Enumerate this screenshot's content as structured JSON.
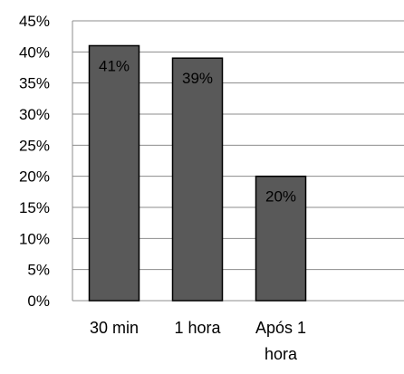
{
  "chart_data": {
    "type": "bar",
    "categories": [
      "30 min",
      "1 hora",
      "Após 1 hora"
    ],
    "category_lines": [
      [
        "30 min"
      ],
      [
        "1 hora"
      ],
      [
        "Após 1",
        "hora"
      ]
    ],
    "values": [
      41,
      39,
      20
    ],
    "data_labels": [
      "41%",
      "39%",
      "20%"
    ],
    "y_ticks": [
      "0%",
      "5%",
      "10%",
      "15%",
      "20%",
      "25%",
      "30%",
      "35%",
      "40%",
      "45%"
    ],
    "ylim": [
      0,
      45
    ],
    "y_tick_step": 5,
    "grid": true,
    "legend": "none",
    "colors": {
      "bar_fill": "#595959",
      "bar_stroke": "#000000",
      "grid": "#8c8c8c",
      "axis": "#8c8c8c",
      "text": "#000000"
    }
  }
}
